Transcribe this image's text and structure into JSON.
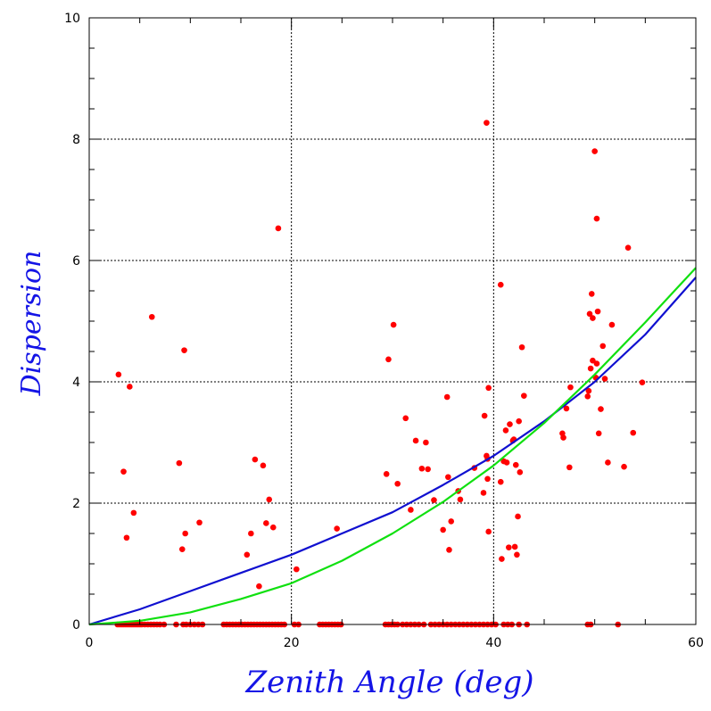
{
  "chart_data": {
    "type": "scatter",
    "title": "",
    "xlabel": "Zenith Angle (deg)",
    "ylabel": "Dispersion",
    "xlim": [
      0,
      60
    ],
    "ylim": [
      0,
      10
    ],
    "x_ticks": [
      0,
      20,
      40,
      60
    ],
    "y_ticks": [
      0,
      2,
      4,
      6,
      8,
      10
    ],
    "grid": "dotted, major ticks",
    "colors": {
      "points": "#ff0000",
      "blue_curve": "#1010d0",
      "green_curve": "#10e010",
      "axis_title": "#1414e6"
    },
    "series": [
      {
        "kind": "scatter",
        "color": "#ff0000",
        "points": [
          [
            2.9,
            4.12
          ],
          [
            3.4,
            2.52
          ],
          [
            3.7,
            1.43
          ],
          [
            4.0,
            3.92
          ],
          [
            4.4,
            1.84
          ],
          [
            6.2,
            5.07
          ],
          [
            8.9,
            2.66
          ],
          [
            9.2,
            1.24
          ],
          [
            9.4,
            4.52
          ],
          [
            9.5,
            1.5
          ],
          [
            10.9,
            1.68
          ],
          [
            15.6,
            1.15
          ],
          [
            16.0,
            1.5
          ],
          [
            16.4,
            2.72
          ],
          [
            16.8,
            0.63
          ],
          [
            17.2,
            2.62
          ],
          [
            17.5,
            1.67
          ],
          [
            17.8,
            2.06
          ],
          [
            18.2,
            1.6
          ],
          [
            18.7,
            6.53
          ],
          [
            20.5,
            0.91
          ],
          [
            24.5,
            1.58
          ],
          [
            29.4,
            2.48
          ],
          [
            29.6,
            4.37
          ],
          [
            30.1,
            4.94
          ],
          [
            30.5,
            2.32
          ],
          [
            31.3,
            3.4
          ],
          [
            31.8,
            1.89
          ],
          [
            32.3,
            3.03
          ],
          [
            32.9,
            2.57
          ],
          [
            33.3,
            3.0
          ],
          [
            33.5,
            2.56
          ],
          [
            34.1,
            2.05
          ],
          [
            35.0,
            1.56
          ],
          [
            35.4,
            3.75
          ],
          [
            35.5,
            2.43
          ],
          [
            35.6,
            1.23
          ],
          [
            35.8,
            1.7
          ],
          [
            36.5,
            2.2
          ],
          [
            36.7,
            2.06
          ],
          [
            38.1,
            2.58
          ],
          [
            39.0,
            2.17
          ],
          [
            39.1,
            3.44
          ],
          [
            39.3,
            8.27
          ],
          [
            39.3,
            2.78
          ],
          [
            39.4,
            2.73
          ],
          [
            39.4,
            2.4
          ],
          [
            39.5,
            3.9
          ],
          [
            39.5,
            1.53
          ],
          [
            40.7,
            5.6
          ],
          [
            40.7,
            2.35
          ],
          [
            40.8,
            1.08
          ],
          [
            41.0,
            2.69
          ],
          [
            41.2,
            3.2
          ],
          [
            41.3,
            2.67
          ],
          [
            41.5,
            1.27
          ],
          [
            41.6,
            3.3
          ],
          [
            41.9,
            3.03
          ],
          [
            42.0,
            3.05
          ],
          [
            42.1,
            1.28
          ],
          [
            42.2,
            2.63
          ],
          [
            42.3,
            1.15
          ],
          [
            42.4,
            1.78
          ],
          [
            42.5,
            3.35
          ],
          [
            42.6,
            2.51
          ],
          [
            42.8,
            4.57
          ],
          [
            43.0,
            3.77
          ],
          [
            46.8,
            3.15
          ],
          [
            46.9,
            3.08
          ],
          [
            47.2,
            3.56
          ],
          [
            47.5,
            2.59
          ],
          [
            47.6,
            3.91
          ],
          [
            49.3,
            3.76
          ],
          [
            49.4,
            3.85
          ],
          [
            49.5,
            5.12
          ],
          [
            49.6,
            4.22
          ],
          [
            49.7,
            5.45
          ],
          [
            49.8,
            4.35
          ],
          [
            49.8,
            5.05
          ],
          [
            50.0,
            7.8
          ],
          [
            50.1,
            4.07
          ],
          [
            50.2,
            6.69
          ],
          [
            50.2,
            4.3
          ],
          [
            50.3,
            5.16
          ],
          [
            50.4,
            3.15
          ],
          [
            50.6,
            3.55
          ],
          [
            50.8,
            4.59
          ],
          [
            51.0,
            4.05
          ],
          [
            51.3,
            2.67
          ],
          [
            51.7,
            4.94
          ],
          [
            52.9,
            2.6
          ],
          [
            53.3,
            6.21
          ],
          [
            53.8,
            3.16
          ],
          [
            54.7,
            3.99
          ]
        ],
        "zero_points_x": [
          2.8,
          3.0,
          3.2,
          3.4,
          3.6,
          3.8,
          4.0,
          4.2,
          4.4,
          4.6,
          4.8,
          5.0,
          5.2,
          5.5,
          5.8,
          6.1,
          6.4,
          6.7,
          7.0,
          7.4,
          8.6,
          9.3,
          9.6,
          10.0,
          10.4,
          10.8,
          11.2,
          13.3,
          13.6,
          13.9,
          14.2,
          14.5,
          14.8,
          15.1,
          15.4,
          15.7,
          16.0,
          16.3,
          16.6,
          16.9,
          17.2,
          17.5,
          17.8,
          18.1,
          18.4,
          18.7,
          19.0,
          19.3,
          20.3,
          20.7,
          22.8,
          23.1,
          23.4,
          23.7,
          24.0,
          24.3,
          24.6,
          24.9,
          29.3,
          29.6,
          29.9,
          30.2,
          30.5,
          31.0,
          31.4,
          31.8,
          32.2,
          32.6,
          33.1,
          33.8,
          34.2,
          34.6,
          35.0,
          35.4,
          35.8,
          36.2,
          36.6,
          37.0,
          37.4,
          37.8,
          38.2,
          38.6,
          39.0,
          39.4,
          39.8,
          40.2,
          41.0,
          41.4,
          41.8,
          42.5,
          43.3,
          49.3,
          49.6,
          52.3
        ]
      },
      {
        "kind": "line",
        "color": "#1010d0",
        "x": [
          0,
          5,
          10,
          15,
          20,
          25,
          30,
          35,
          40,
          45,
          50,
          55,
          60
        ],
        "y": [
          0,
          0.25,
          0.55,
          0.85,
          1.15,
          1.5,
          1.85,
          2.3,
          2.78,
          3.35,
          4.0,
          4.78,
          5.72
        ]
      },
      {
        "kind": "line",
        "color": "#10e010",
        "x": [
          0,
          5,
          10,
          15,
          20,
          25,
          30,
          35,
          40,
          45,
          50,
          55,
          60
        ],
        "y": [
          0,
          0.06,
          0.2,
          0.42,
          0.68,
          1.05,
          1.5,
          2.02,
          2.62,
          3.32,
          4.12,
          4.98,
          5.88
        ]
      }
    ]
  }
}
